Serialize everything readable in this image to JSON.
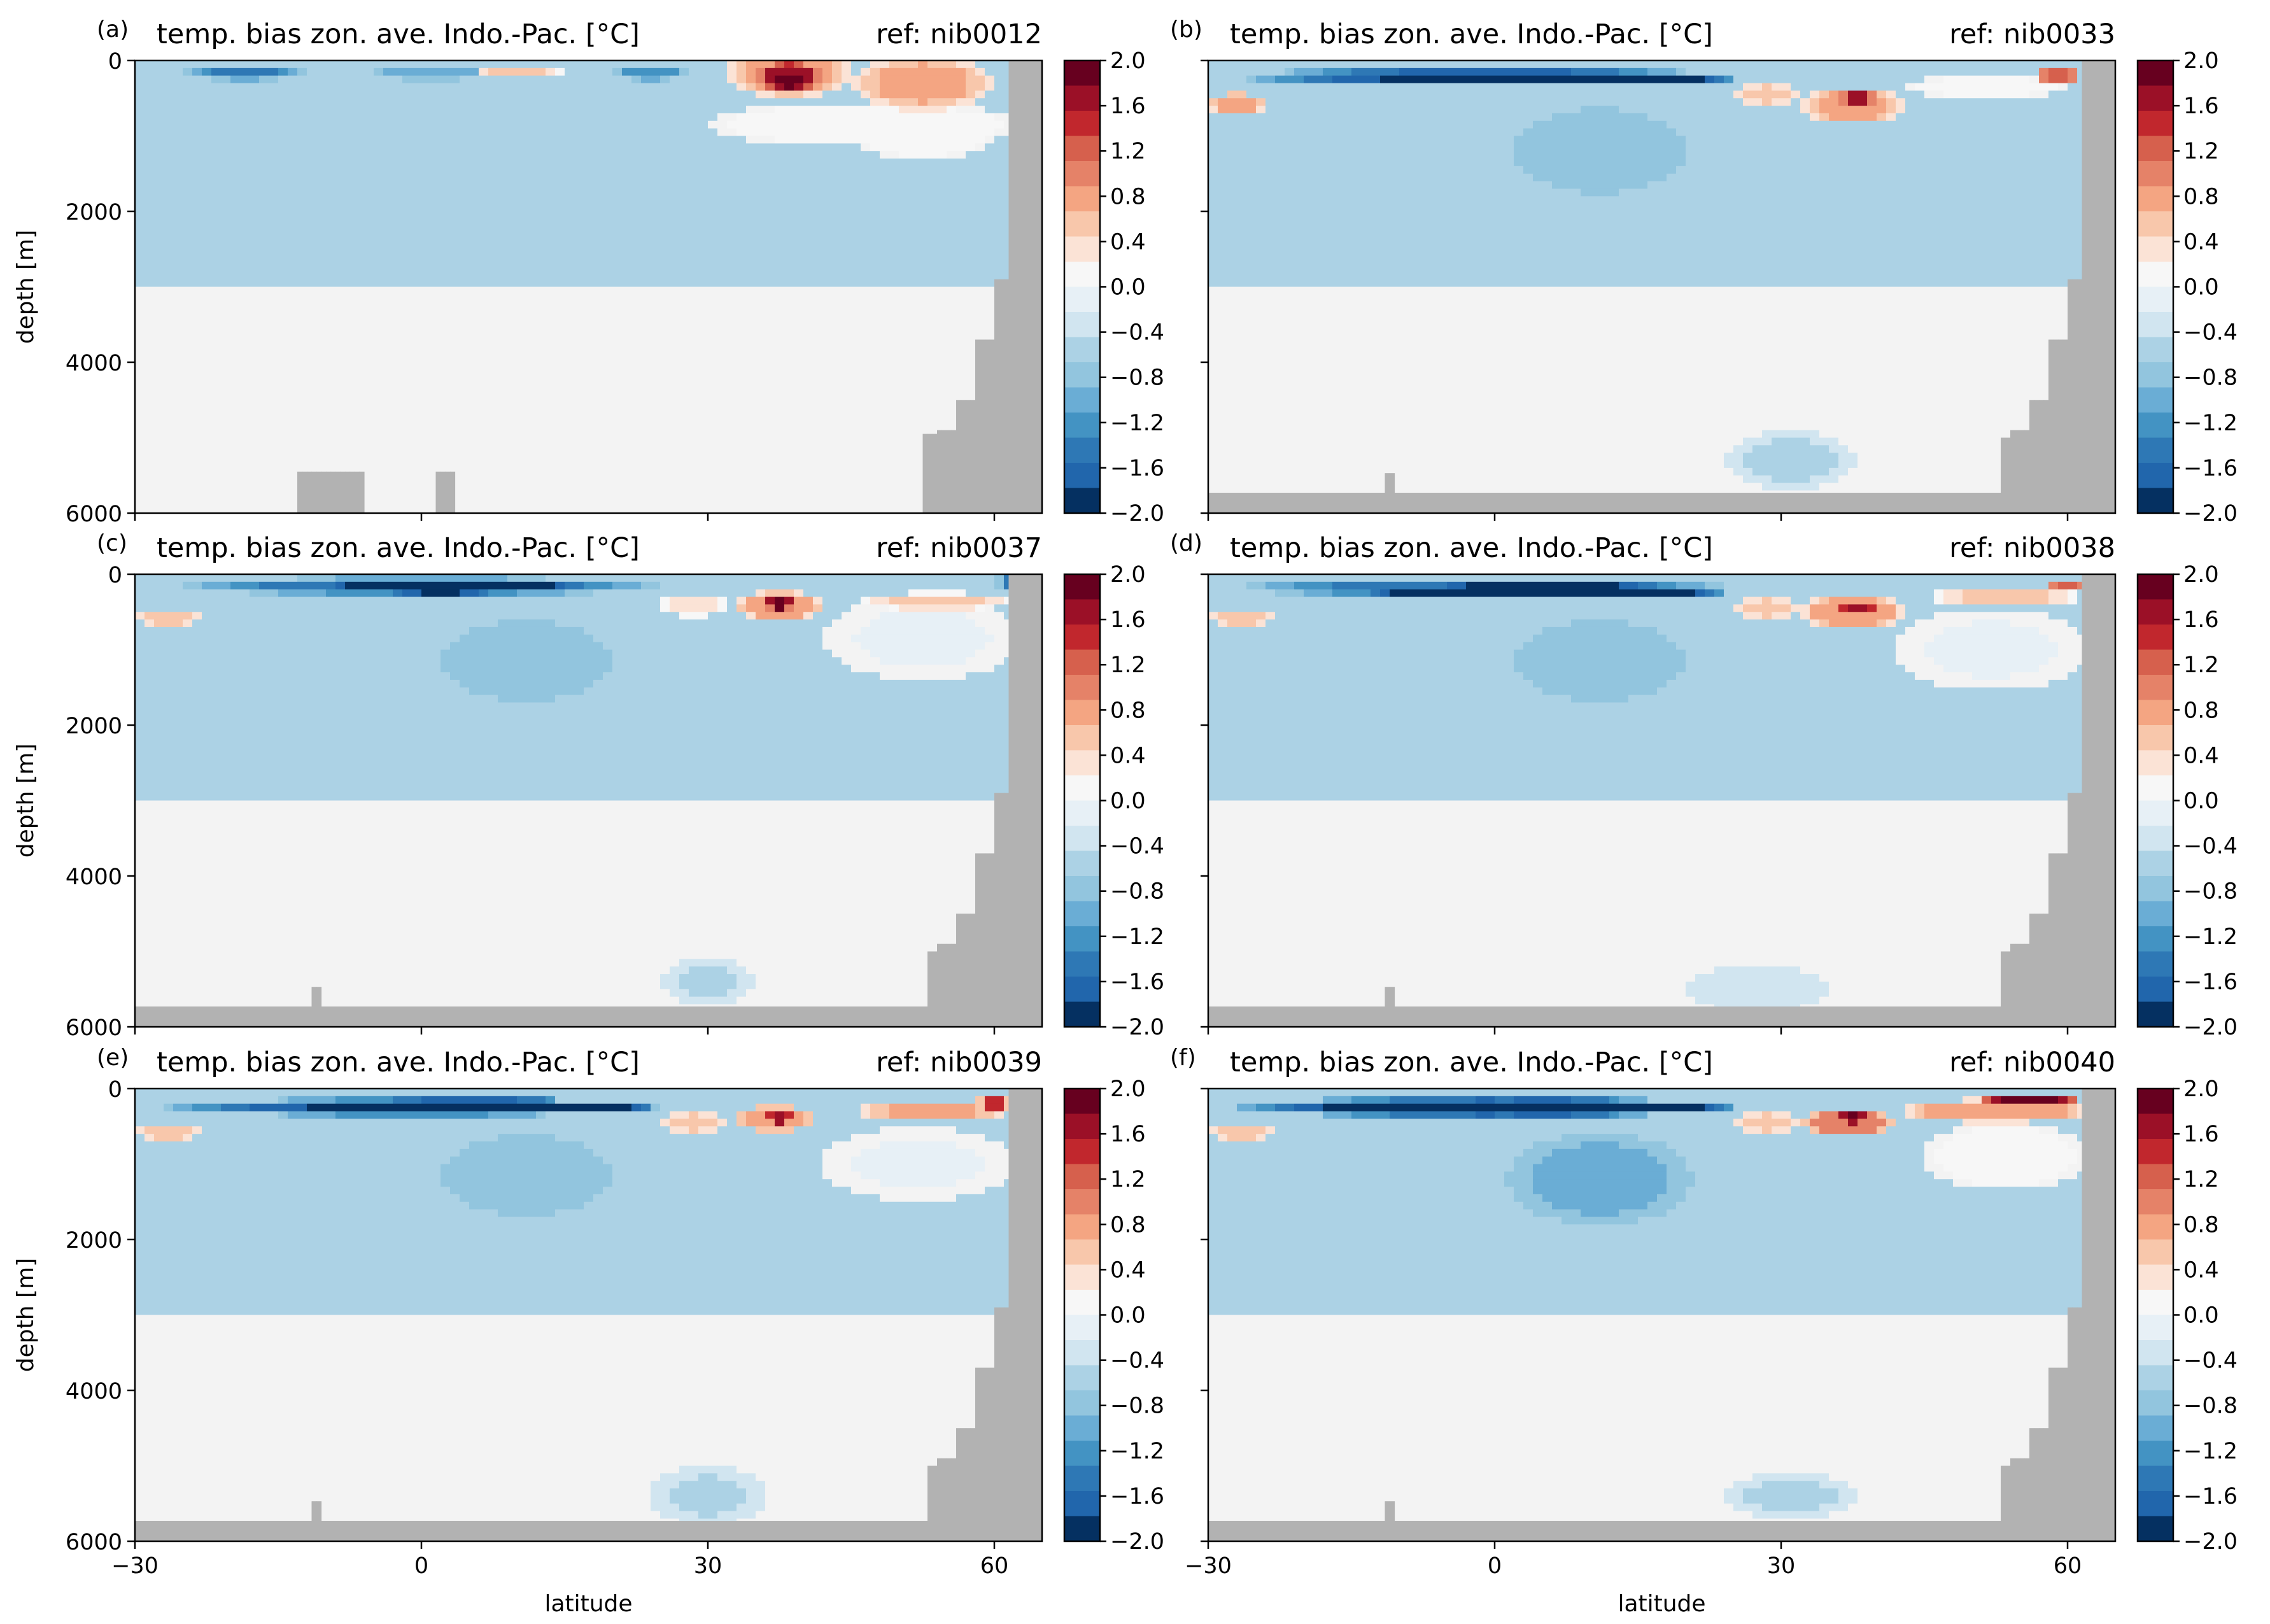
{
  "chart_data": [
    {
      "type": "heatmap",
      "panel": "(a)",
      "title": "temp. bias zon. ave. Indo.-Pac. [°C]",
      "ref": "ref: nib0012"
    },
    {
      "type": "heatmap",
      "panel": "(b)",
      "title": "temp. bias zon. ave. Indo.-Pac. [°C]",
      "ref": "ref: nib0033"
    },
    {
      "type": "heatmap",
      "panel": "(c)",
      "title": "temp. bias zon. ave. Indo.-Pac. [°C]",
      "ref": "ref: nib0037"
    },
    {
      "type": "heatmap",
      "panel": "(d)",
      "title": "temp. bias zon. ave. Indo.-Pac. [°C]",
      "ref": "ref: nib0038"
    },
    {
      "type": "heatmap",
      "panel": "(e)",
      "title": "temp. bias zon. ave. Indo.-Pac. [°C]",
      "ref": "ref: nib0039"
    },
    {
      "type": "heatmap",
      "panel": "(f)",
      "title": "temp. bias zon. ave. Indo.-Pac. [°C]",
      "ref": "ref: nib0040"
    }
  ],
  "axes": {
    "xlabel": "latitude",
    "ylabel": "depth [m]",
    "xlim": [
      -30,
      65
    ],
    "ylim": [
      6000,
      0
    ],
    "xticks": [
      "−30",
      "0",
      "30",
      "60"
    ],
    "xtick_values": [
      -30,
      0,
      30,
      60
    ],
    "yticks": [
      "0",
      "2000",
      "4000",
      "6000"
    ],
    "ytick_values": [
      0,
      2000,
      4000,
      6000
    ]
  },
  "colorbar": {
    "vmin": -2.0,
    "vmax": 2.0,
    "ticks": [
      "2.0",
      "1.6",
      "1.2",
      "0.8",
      "0.4",
      "0.0",
      "−0.4",
      "−0.8",
      "−1.2",
      "−1.6",
      "−2.0"
    ],
    "tick_values": [
      2.0,
      1.6,
      1.2,
      0.8,
      0.4,
      0.0,
      -0.4,
      -0.8,
      -1.2,
      -1.6,
      -2.0
    ],
    "levels": [
      "#67001f",
      "#9b1027",
      "#c1272d",
      "#d6604d",
      "#e58268",
      "#f4a582",
      "#f8c7ab",
      "#fbe3d6",
      "#f7f7f7",
      "#e7f0f6",
      "#d1e5f0",
      "#acd2e5",
      "#92c5de",
      "#6aadd5",
      "#4393c3",
      "#2e78b5",
      "#2166ac",
      "#053061"
    ],
    "land_color": "#b2b2b2",
    "background_color": "#eef2f5"
  }
}
